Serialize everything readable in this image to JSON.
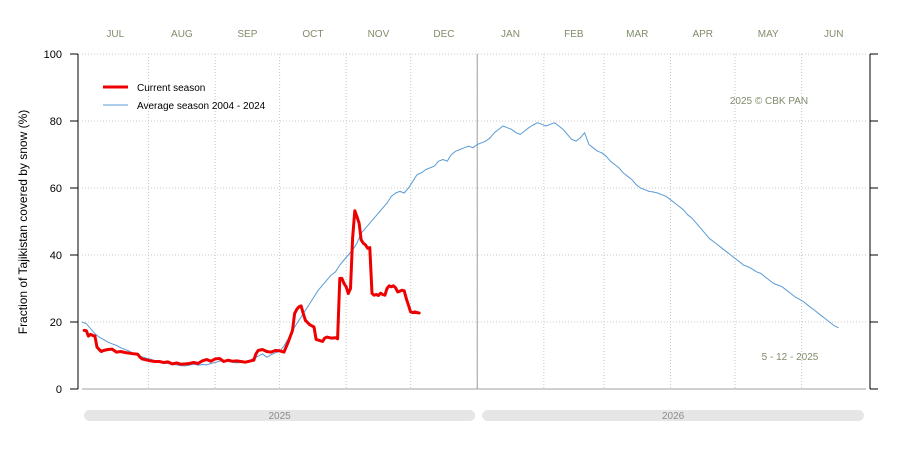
{
  "chart_data": {
    "type": "line",
    "ylabel": "Fraction of  Tajikistan  covered by snow (%)",
    "xlabel": "",
    "title": "",
    "ylim": [
      0,
      100
    ],
    "yticks": [
      0,
      20,
      40,
      60,
      80,
      100
    ],
    "x_unit": "days since 1 July 2025",
    "xlim": [
      0,
      365
    ],
    "months": [
      {
        "label": "JUL",
        "start": 0,
        "end": 31
      },
      {
        "label": "AUG",
        "start": 31,
        "end": 62
      },
      {
        "label": "SEP",
        "start": 62,
        "end": 92
      },
      {
        "label": "OCT",
        "start": 92,
        "end": 123
      },
      {
        "label": "NOV",
        "start": 123,
        "end": 153
      },
      {
        "label": "DEC",
        "start": 153,
        "end": 184
      },
      {
        "label": "JAN",
        "start": 184,
        "end": 215
      },
      {
        "label": "FEB",
        "start": 215,
        "end": 243
      },
      {
        "label": "MAR",
        "start": 243,
        "end": 274
      },
      {
        "label": "APR",
        "start": 274,
        "end": 304
      },
      {
        "label": "MAY",
        "start": 304,
        "end": 335
      },
      {
        "label": "JUN",
        "start": 335,
        "end": 365
      }
    ],
    "year_bars": [
      {
        "label": "2025",
        "start": 0,
        "end": 184
      },
      {
        "label": "2026",
        "start": 184,
        "end": 365
      }
    ],
    "year_divider_x": 184,
    "legend": {
      "position": "top-left",
      "entries": [
        {
          "name": "Current season",
          "color": "#ee0000",
          "width": 3
        },
        {
          "name": "Average season 2004 - 2024",
          "color": "#5b9bd5",
          "width": 1
        }
      ]
    },
    "annotations": {
      "copyright": "2025  © CBK PAN",
      "date": "5 - 12 - 2025"
    },
    "series": [
      {
        "name": "Current season",
        "color": "#ee0000",
        "points": [
          [
            1,
            17.5
          ],
          [
            2,
            17.4
          ],
          [
            3,
            15.8
          ],
          [
            4,
            16.3
          ],
          [
            5,
            16.0
          ],
          [
            6,
            15.8
          ],
          [
            7,
            12.5
          ],
          [
            8,
            11.8
          ],
          [
            9,
            11.2
          ],
          [
            10,
            11.5
          ],
          [
            12,
            11.8
          ],
          [
            14,
            11.9
          ],
          [
            16,
            11.0
          ],
          [
            18,
            11.2
          ],
          [
            20,
            10.9
          ],
          [
            22,
            10.7
          ],
          [
            24,
            10.5
          ],
          [
            26,
            10.4
          ],
          [
            27,
            9.5
          ],
          [
            28,
            9.0
          ],
          [
            30,
            8.7
          ],
          [
            32,
            8.4
          ],
          [
            34,
            8.2
          ],
          [
            36,
            8.2
          ],
          [
            38,
            7.9
          ],
          [
            40,
            8.1
          ],
          [
            42,
            7.5
          ],
          [
            44,
            7.8
          ],
          [
            46,
            7.4
          ],
          [
            48,
            7.5
          ],
          [
            50,
            7.6
          ],
          [
            52,
            7.9
          ],
          [
            54,
            7.6
          ],
          [
            56,
            8.4
          ],
          [
            58,
            8.8
          ],
          [
            60,
            8.3
          ],
          [
            62,
            9.0
          ],
          [
            64,
            9.1
          ],
          [
            66,
            8.2
          ],
          [
            68,
            8.6
          ],
          [
            70,
            8.3
          ],
          [
            72,
            8.4
          ],
          [
            74,
            8.2
          ],
          [
            76,
            8.0
          ],
          [
            78,
            8.3
          ],
          [
            80,
            8.6
          ],
          [
            81,
            10.5
          ],
          [
            82,
            11.5
          ],
          [
            84,
            11.8
          ],
          [
            86,
            11.2
          ],
          [
            88,
            11.0
          ],
          [
            90,
            11.5
          ],
          [
            92,
            11.4
          ],
          [
            94,
            11.0
          ],
          [
            96,
            14.0
          ],
          [
            98,
            17.5
          ],
          [
            99,
            22.5
          ],
          [
            100,
            23.8
          ],
          [
            101,
            24.5
          ],
          [
            102,
            24.8
          ],
          [
            103,
            22.6
          ],
          [
            104,
            20.5
          ],
          [
            106,
            19.2
          ],
          [
            108,
            18.5
          ],
          [
            109,
            14.8
          ],
          [
            110,
            14.6
          ],
          [
            112,
            14.2
          ],
          [
            113,
            15.2
          ],
          [
            114,
            15.5
          ],
          [
            116,
            15.2
          ],
          [
            118,
            15.3
          ],
          [
            119,
            15.0
          ],
          [
            120,
            33.0
          ],
          [
            121,
            33.0
          ],
          [
            122,
            31.5
          ],
          [
            123,
            30.5
          ],
          [
            124,
            28.5
          ],
          [
            125,
            30.0
          ],
          [
            126,
            45.0
          ],
          [
            127,
            53.2
          ],
          [
            128,
            51.5
          ],
          [
            129,
            49.5
          ],
          [
            130,
            44.5
          ],
          [
            131,
            43.5
          ],
          [
            132,
            43.0
          ],
          [
            133,
            42.0
          ],
          [
            134,
            42.2
          ],
          [
            135,
            28.5
          ],
          [
            136,
            28.0
          ],
          [
            137,
            28.2
          ],
          [
            138,
            27.9
          ],
          [
            139,
            28.6
          ],
          [
            140,
            28.2
          ],
          [
            141,
            28.0
          ],
          [
            142,
            30.0
          ],
          [
            143,
            30.8
          ],
          [
            144,
            30.5
          ],
          [
            145,
            30.8
          ],
          [
            146,
            30.2
          ],
          [
            147,
            29.0
          ],
          [
            148,
            29.2
          ],
          [
            149,
            29.5
          ],
          [
            150,
            29.3
          ],
          [
            151,
            27.0
          ],
          [
            152,
            25.0
          ],
          [
            153,
            23.0
          ],
          [
            154,
            22.8
          ],
          [
            155,
            23.0
          ],
          [
            156,
            22.8
          ],
          [
            157,
            22.7
          ]
        ]
      },
      {
        "name": "Average season 2004 - 2024",
        "color": "#5b9bd5",
        "points": [
          [
            0,
            20.0
          ],
          [
            2,
            19.5
          ],
          [
            4,
            18.0
          ],
          [
            6,
            16.5
          ],
          [
            8,
            15.5
          ],
          [
            10,
            14.8
          ],
          [
            12,
            14.0
          ],
          [
            14,
            13.5
          ],
          [
            16,
            13.0
          ],
          [
            18,
            12.3
          ],
          [
            20,
            11.8
          ],
          [
            22,
            11.3
          ],
          [
            24,
            10.6
          ],
          [
            26,
            10.0
          ],
          [
            28,
            9.6
          ],
          [
            30,
            9.2
          ],
          [
            32,
            8.9
          ],
          [
            34,
            8.4
          ],
          [
            36,
            8.1
          ],
          [
            38,
            7.7
          ],
          [
            40,
            7.6
          ],
          [
            42,
            7.3
          ],
          [
            44,
            7.2
          ],
          [
            46,
            7.0
          ],
          [
            48,
            6.9
          ],
          [
            50,
            7.1
          ],
          [
            52,
            7.4
          ],
          [
            54,
            7.1
          ],
          [
            56,
            7.3
          ],
          [
            58,
            7.2
          ],
          [
            60,
            7.6
          ],
          [
            62,
            7.9
          ],
          [
            64,
            8.3
          ],
          [
            66,
            8.5
          ],
          [
            68,
            8.2
          ],
          [
            70,
            8.0
          ],
          [
            72,
            7.8
          ],
          [
            74,
            7.9
          ],
          [
            76,
            8.1
          ],
          [
            78,
            8.5
          ],
          [
            80,
            9.2
          ],
          [
            82,
            9.8
          ],
          [
            84,
            10.5
          ],
          [
            86,
            9.5
          ],
          [
            88,
            10.2
          ],
          [
            90,
            10.8
          ],
          [
            92,
            11.2
          ],
          [
            94,
            12.8
          ],
          [
            96,
            15.0
          ],
          [
            98,
            17.5
          ],
          [
            100,
            19.5
          ],
          [
            102,
            21.5
          ],
          [
            104,
            23.5
          ],
          [
            106,
            25.5
          ],
          [
            108,
            27.5
          ],
          [
            110,
            29.5
          ],
          [
            112,
            31.0
          ],
          [
            114,
            32.5
          ],
          [
            116,
            34.0
          ],
          [
            118,
            35.0
          ],
          [
            120,
            37.0
          ],
          [
            122,
            38.5
          ],
          [
            124,
            40.0
          ],
          [
            126,
            41.5
          ],
          [
            128,
            43.5
          ],
          [
            130,
            46.5
          ],
          [
            132,
            48.0
          ],
          [
            134,
            49.5
          ],
          [
            136,
            51.0
          ],
          [
            138,
            52.5
          ],
          [
            140,
            54.0
          ],
          [
            142,
            55.5
          ],
          [
            144,
            57.5
          ],
          [
            146,
            58.5
          ],
          [
            148,
            59.0
          ],
          [
            150,
            58.5
          ],
          [
            152,
            60.0
          ],
          [
            154,
            62.0
          ],
          [
            156,
            64.0
          ],
          [
            158,
            64.5
          ],
          [
            160,
            65.5
          ],
          [
            162,
            66.0
          ],
          [
            164,
            66.5
          ],
          [
            166,
            68.0
          ],
          [
            168,
            68.5
          ],
          [
            170,
            68.0
          ],
          [
            172,
            70.0
          ],
          [
            174,
            71.0
          ],
          [
            176,
            71.5
          ],
          [
            178,
            72.0
          ],
          [
            180,
            72.5
          ],
          [
            182,
            72.0
          ],
          [
            184,
            73.0
          ],
          [
            186,
            73.5
          ],
          [
            188,
            74.0
          ],
          [
            190,
            75.0
          ],
          [
            192,
            76.5
          ],
          [
            194,
            77.5
          ],
          [
            196,
            78.5
          ],
          [
            198,
            78.0
          ],
          [
            200,
            77.5
          ],
          [
            202,
            76.5
          ],
          [
            204,
            76.0
          ],
          [
            206,
            77.0
          ],
          [
            208,
            78.0
          ],
          [
            210,
            78.8
          ],
          [
            212,
            79.5
          ],
          [
            214,
            79.0
          ],
          [
            216,
            78.5
          ],
          [
            218,
            79.0
          ],
          [
            220,
            79.5
          ],
          [
            222,
            78.5
          ],
          [
            224,
            77.5
          ],
          [
            226,
            76.0
          ],
          [
            228,
            74.5
          ],
          [
            230,
            74.0
          ],
          [
            232,
            75.0
          ],
          [
            234,
            76.5
          ],
          [
            236,
            73.0
          ],
          [
            238,
            72.0
          ],
          [
            240,
            71.0
          ],
          [
            242,
            70.5
          ],
          [
            244,
            69.5
          ],
          [
            246,
            68.0
          ],
          [
            248,
            67.0
          ],
          [
            250,
            66.0
          ],
          [
            252,
            64.5
          ],
          [
            254,
            63.5
          ],
          [
            256,
            62.5
          ],
          [
            258,
            61.0
          ],
          [
            260,
            60.0
          ],
          [
            262,
            59.5
          ],
          [
            264,
            59.0
          ],
          [
            266,
            58.8
          ],
          [
            268,
            58.5
          ],
          [
            270,
            58.0
          ],
          [
            272,
            57.5
          ],
          [
            274,
            56.5
          ],
          [
            276,
            55.5
          ],
          [
            278,
            54.5
          ],
          [
            280,
            53.5
          ],
          [
            282,
            52.0
          ],
          [
            284,
            51.0
          ],
          [
            286,
            49.5
          ],
          [
            288,
            48.0
          ],
          [
            290,
            46.5
          ],
          [
            292,
            45.0
          ],
          [
            294,
            44.0
          ],
          [
            296,
            43.0
          ],
          [
            298,
            42.0
          ],
          [
            300,
            41.0
          ],
          [
            302,
            40.0
          ],
          [
            304,
            39.0
          ],
          [
            306,
            38.0
          ],
          [
            308,
            37.0
          ],
          [
            310,
            36.5
          ],
          [
            312,
            35.8
          ],
          [
            314,
            35.0
          ],
          [
            316,
            34.5
          ],
          [
            318,
            33.5
          ],
          [
            320,
            32.5
          ],
          [
            322,
            31.5
          ],
          [
            324,
            31.0
          ],
          [
            326,
            30.5
          ],
          [
            328,
            29.5
          ],
          [
            330,
            28.5
          ],
          [
            332,
            27.5
          ],
          [
            334,
            26.8
          ],
          [
            336,
            26.0
          ],
          [
            338,
            25.0
          ],
          [
            340,
            24.0
          ],
          [
            342,
            23.0
          ],
          [
            344,
            22.0
          ],
          [
            346,
            21.0
          ],
          [
            348,
            20.0
          ],
          [
            350,
            19.0
          ],
          [
            352,
            18.3
          ]
        ]
      }
    ]
  }
}
